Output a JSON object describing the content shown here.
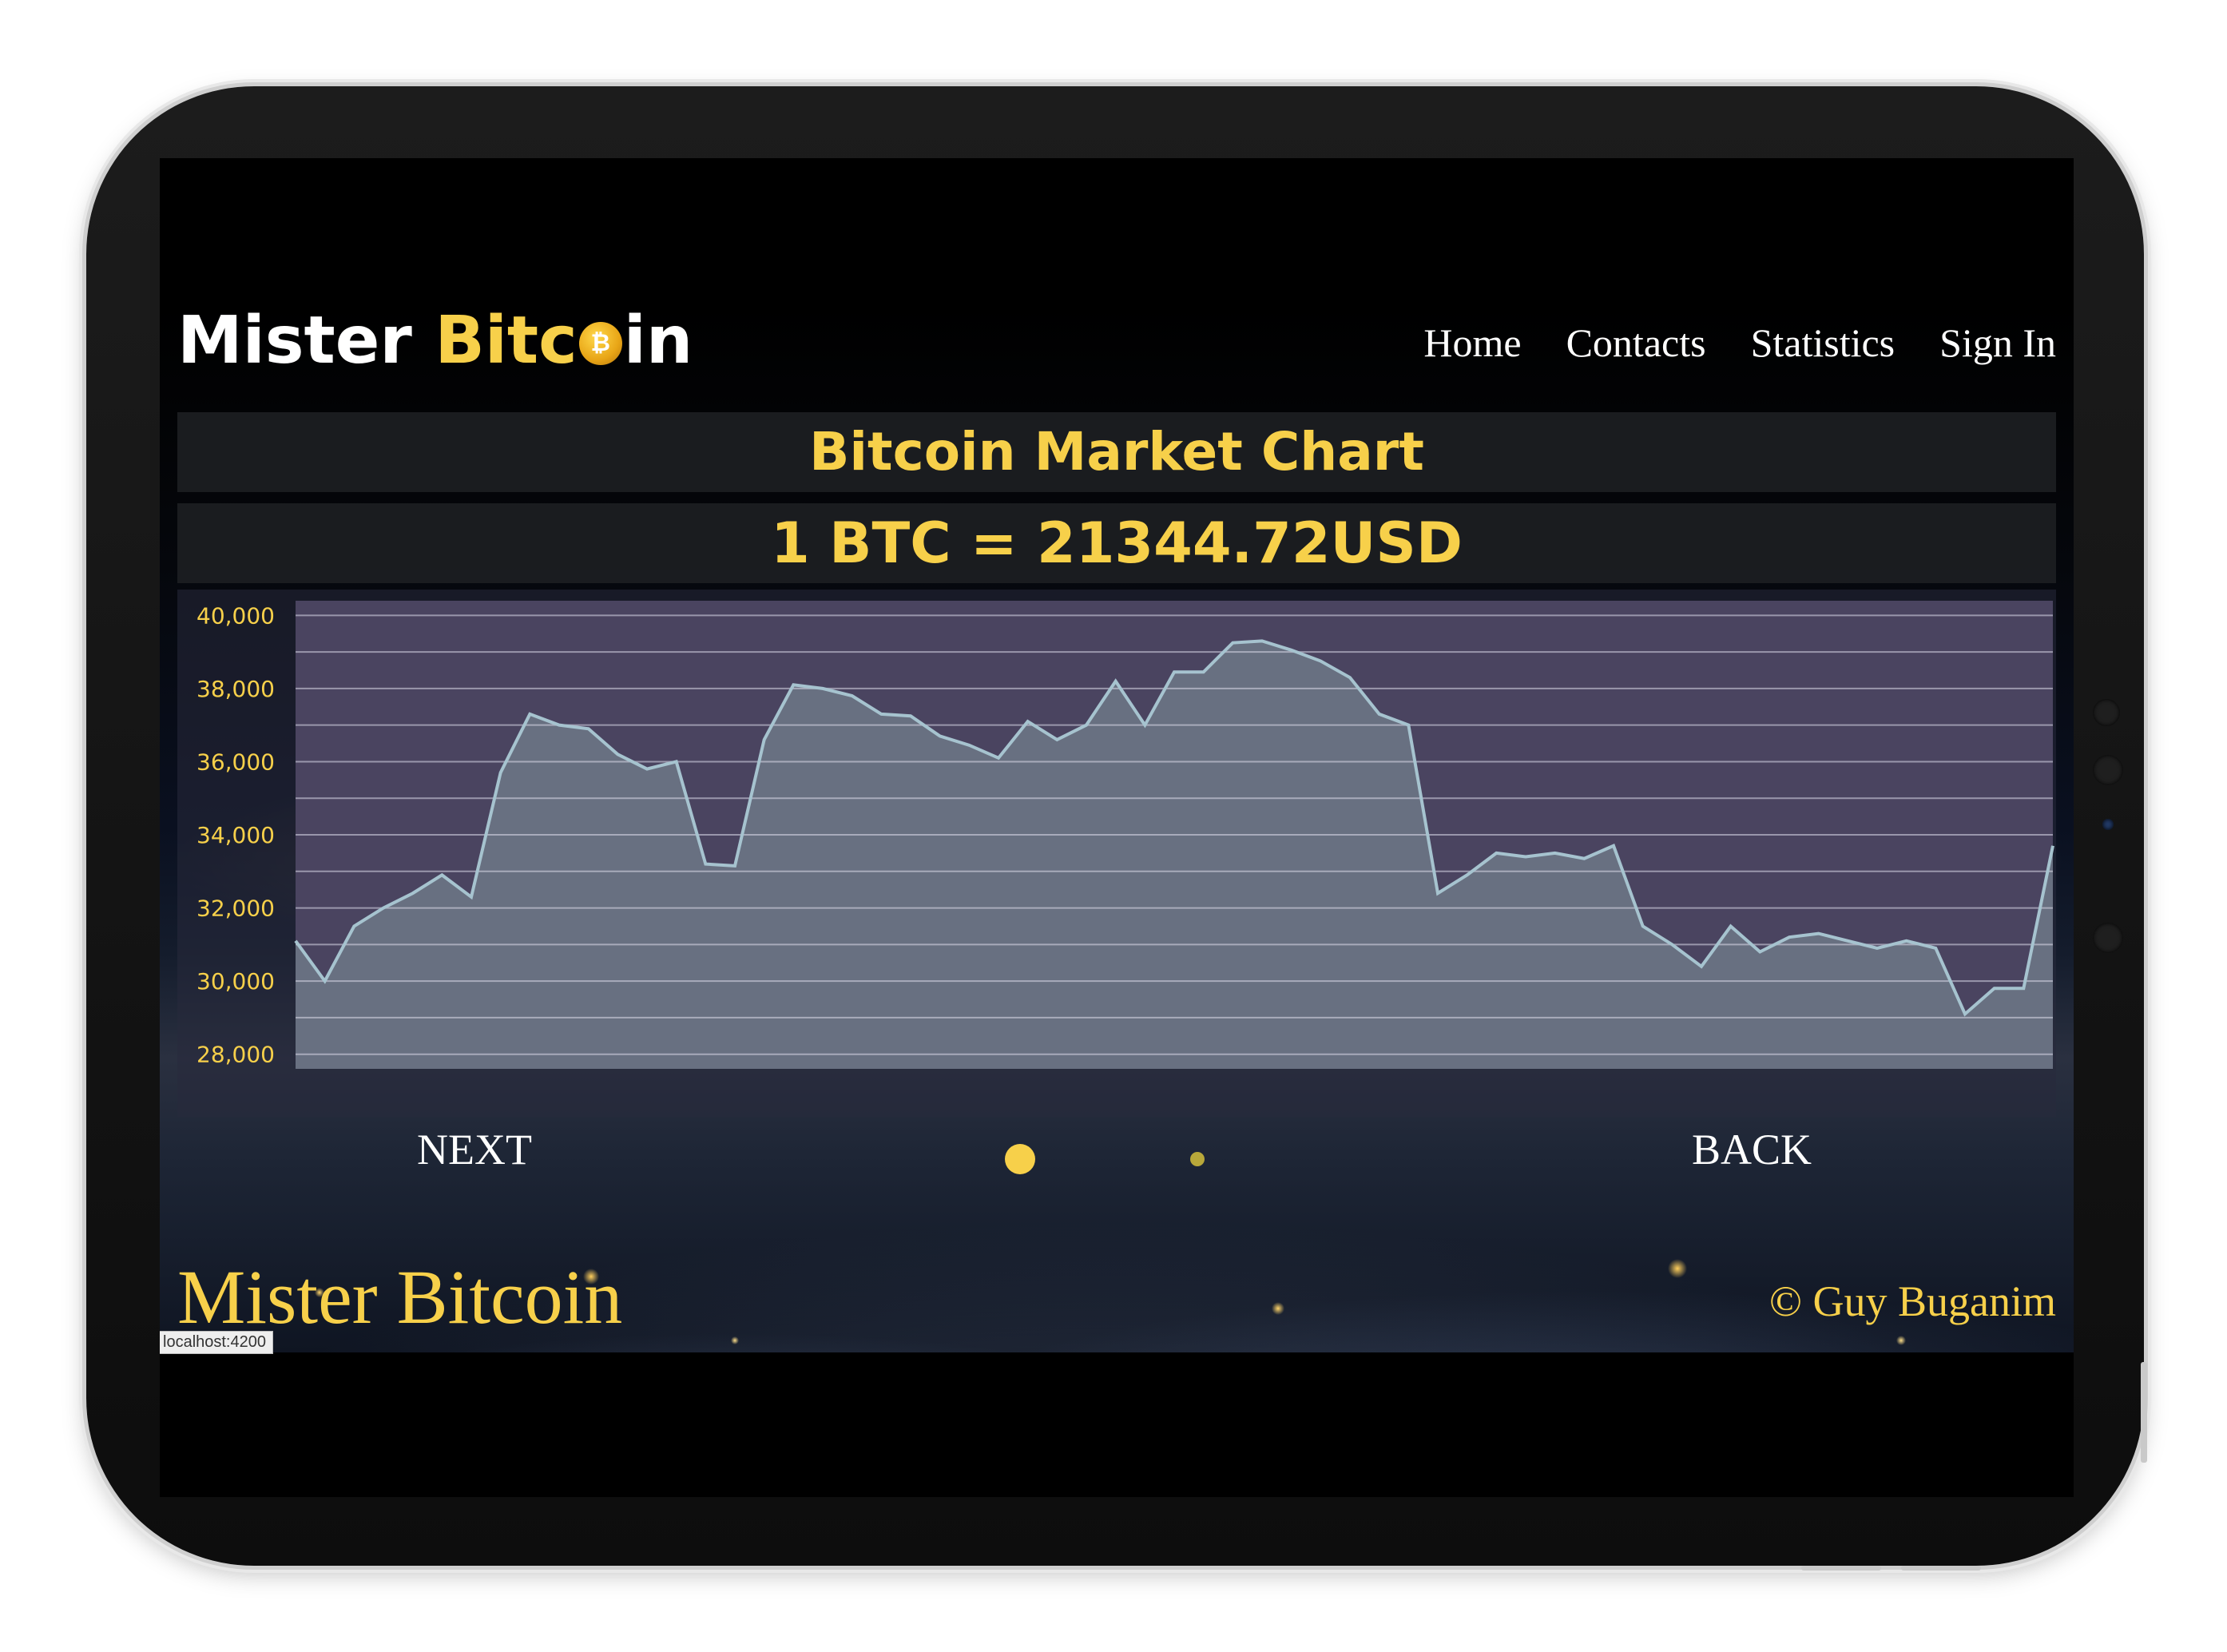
{
  "app": {
    "logo_text_white": "Mister ",
    "logo_text_yellow": "Bitc",
    "logo_text_end": "in",
    "coin_icon": "bitcoin-coin-icon",
    "coin_glyph": "₿"
  },
  "nav": {
    "items": [
      {
        "label": "Home"
      },
      {
        "label": "Contacts"
      },
      {
        "label": "Statistics"
      },
      {
        "label": "Sign In"
      }
    ]
  },
  "main": {
    "title": "Bitcoin Market Chart",
    "rate": "1 BTC = 21344.72USD"
  },
  "chart_data": {
    "type": "area",
    "title": "",
    "xlabel": "",
    "ylabel": "",
    "ylim": [
      27600,
      40400
    ],
    "y_ticks": [
      28000,
      30000,
      32000,
      34000,
      36000,
      38000,
      40000
    ],
    "y_tick_labels": [
      "28,000",
      "30,000",
      "32,000",
      "34,000",
      "36,000",
      "38,000",
      "40,000"
    ],
    "grid": true,
    "values": [
      31100,
      30000,
      31500,
      32000,
      32400,
      32900,
      32300,
      35700,
      37300,
      37000,
      36900,
      36200,
      35800,
      36000,
      33200,
      33150,
      36600,
      38100,
      38000,
      37800,
      37300,
      37250,
      36700,
      36450,
      36100,
      37100,
      36600,
      37000,
      38200,
      37000,
      38450,
      38450,
      39250,
      39300,
      39050,
      38750,
      38300,
      37300,
      37000,
      32400,
      32900,
      33500,
      33400,
      33500,
      33350,
      33700,
      31500,
      31000,
      30400,
      31500,
      30800,
      31200,
      31300,
      31100,
      30900,
      31100,
      30900,
      29100,
      29800,
      29800,
      33700
    ],
    "colors": {
      "fill": "#6b7585",
      "line": "#a6c3cf",
      "plot_bg": "#4a4460",
      "tick": "#f7d04a"
    }
  },
  "pager": {
    "next_label": "NEXT",
    "back_label": "BACK",
    "active_dot_color": "#f7d04a",
    "inactive_dot_color": "#b8a83a"
  },
  "footer": {
    "title": "Mister Bitcoin",
    "copyright": "© Guy Buganim"
  },
  "status_bar": {
    "url": "localhost:4200"
  }
}
